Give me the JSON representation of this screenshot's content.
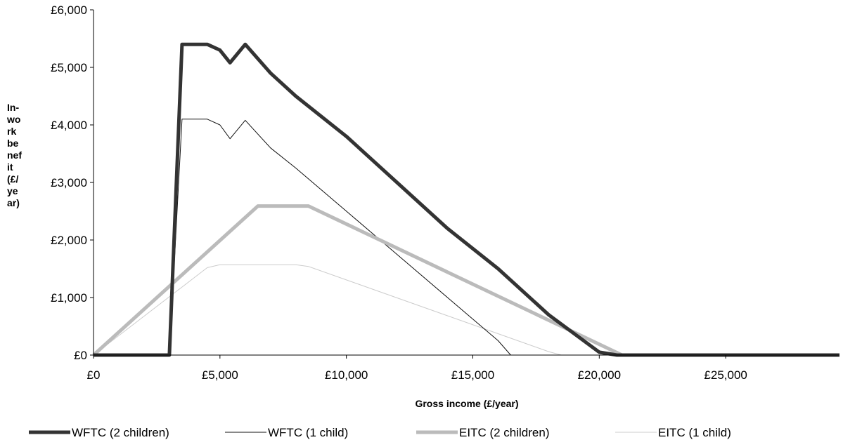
{
  "chart_data": {
    "type": "line",
    "xlabel": "Gross income (£/year)",
    "ylabel_lines": [
      "In-",
      "wo",
      "rk",
      "be",
      "nef",
      "it",
      "(£/",
      "ye",
      "ar)"
    ],
    "xlim": [
      0,
      29500
    ],
    "ylim": [
      0,
      6000
    ],
    "x_ticks": [
      {
        "value": 0,
        "label": "£0"
      },
      {
        "value": 5000,
        "label": "£5,000"
      },
      {
        "value": 10000,
        "label": "£10,000"
      },
      {
        "value": 15000,
        "label": "£15,000"
      },
      {
        "value": 20000,
        "label": "£20,000"
      },
      {
        "value": 25000,
        "label": "£25,000"
      }
    ],
    "y_ticks": [
      {
        "value": 0,
        "label": "£0"
      },
      {
        "value": 1000,
        "label": "£1,000"
      },
      {
        "value": 2000,
        "label": "£2,000"
      },
      {
        "value": 3000,
        "label": "£3,000"
      },
      {
        "value": 4000,
        "label": "£4,000"
      },
      {
        "value": 5000,
        "label": "£5,000"
      },
      {
        "value": 6000,
        "label": "£6,000"
      }
    ],
    "grid": false,
    "legend_position": "bottom",
    "series": [
      {
        "name": "WFTC (2 children)",
        "color": "#333333",
        "width": 5,
        "points": [
          [
            0,
            0
          ],
          [
            3000,
            0
          ],
          [
            3500,
            5400
          ],
          [
            4500,
            5400
          ],
          [
            5000,
            5300
          ],
          [
            5400,
            5080
          ],
          [
            6000,
            5400
          ],
          [
            7000,
            4900
          ],
          [
            8000,
            4500
          ],
          [
            10000,
            3800
          ],
          [
            12000,
            3000
          ],
          [
            14000,
            2200
          ],
          [
            16000,
            1500
          ],
          [
            18000,
            700
          ],
          [
            20000,
            50
          ],
          [
            20700,
            0
          ],
          [
            29500,
            0
          ]
        ]
      },
      {
        "name": "WFTC (1 child)",
        "color": "#111111",
        "width": 1,
        "points": [
          [
            0,
            0
          ],
          [
            3000,
            0
          ],
          [
            3500,
            4100
          ],
          [
            4500,
            4100
          ],
          [
            5000,
            4000
          ],
          [
            5400,
            3760
          ],
          [
            6000,
            4080
          ],
          [
            7000,
            3600
          ],
          [
            8000,
            3250
          ],
          [
            10000,
            2500
          ],
          [
            12000,
            1750
          ],
          [
            14000,
            1000
          ],
          [
            16000,
            250
          ],
          [
            16500,
            0
          ],
          [
            29500,
            0
          ]
        ]
      },
      {
        "name": "EITC (2 children)",
        "color": "#bbbbbb",
        "width": 5,
        "points": [
          [
            0,
            0
          ],
          [
            6500,
            2590
          ],
          [
            8500,
            2590
          ],
          [
            20900,
            0
          ],
          [
            29500,
            0
          ]
        ]
      },
      {
        "name": "EITC (1 child)",
        "color": "#cccccc",
        "width": 1,
        "points": [
          [
            0,
            0
          ],
          [
            4500,
            1520
          ],
          [
            5000,
            1570
          ],
          [
            8000,
            1570
          ],
          [
            8500,
            1540
          ],
          [
            18000,
            60
          ],
          [
            18500,
            0
          ],
          [
            29500,
            0
          ]
        ]
      }
    ]
  }
}
